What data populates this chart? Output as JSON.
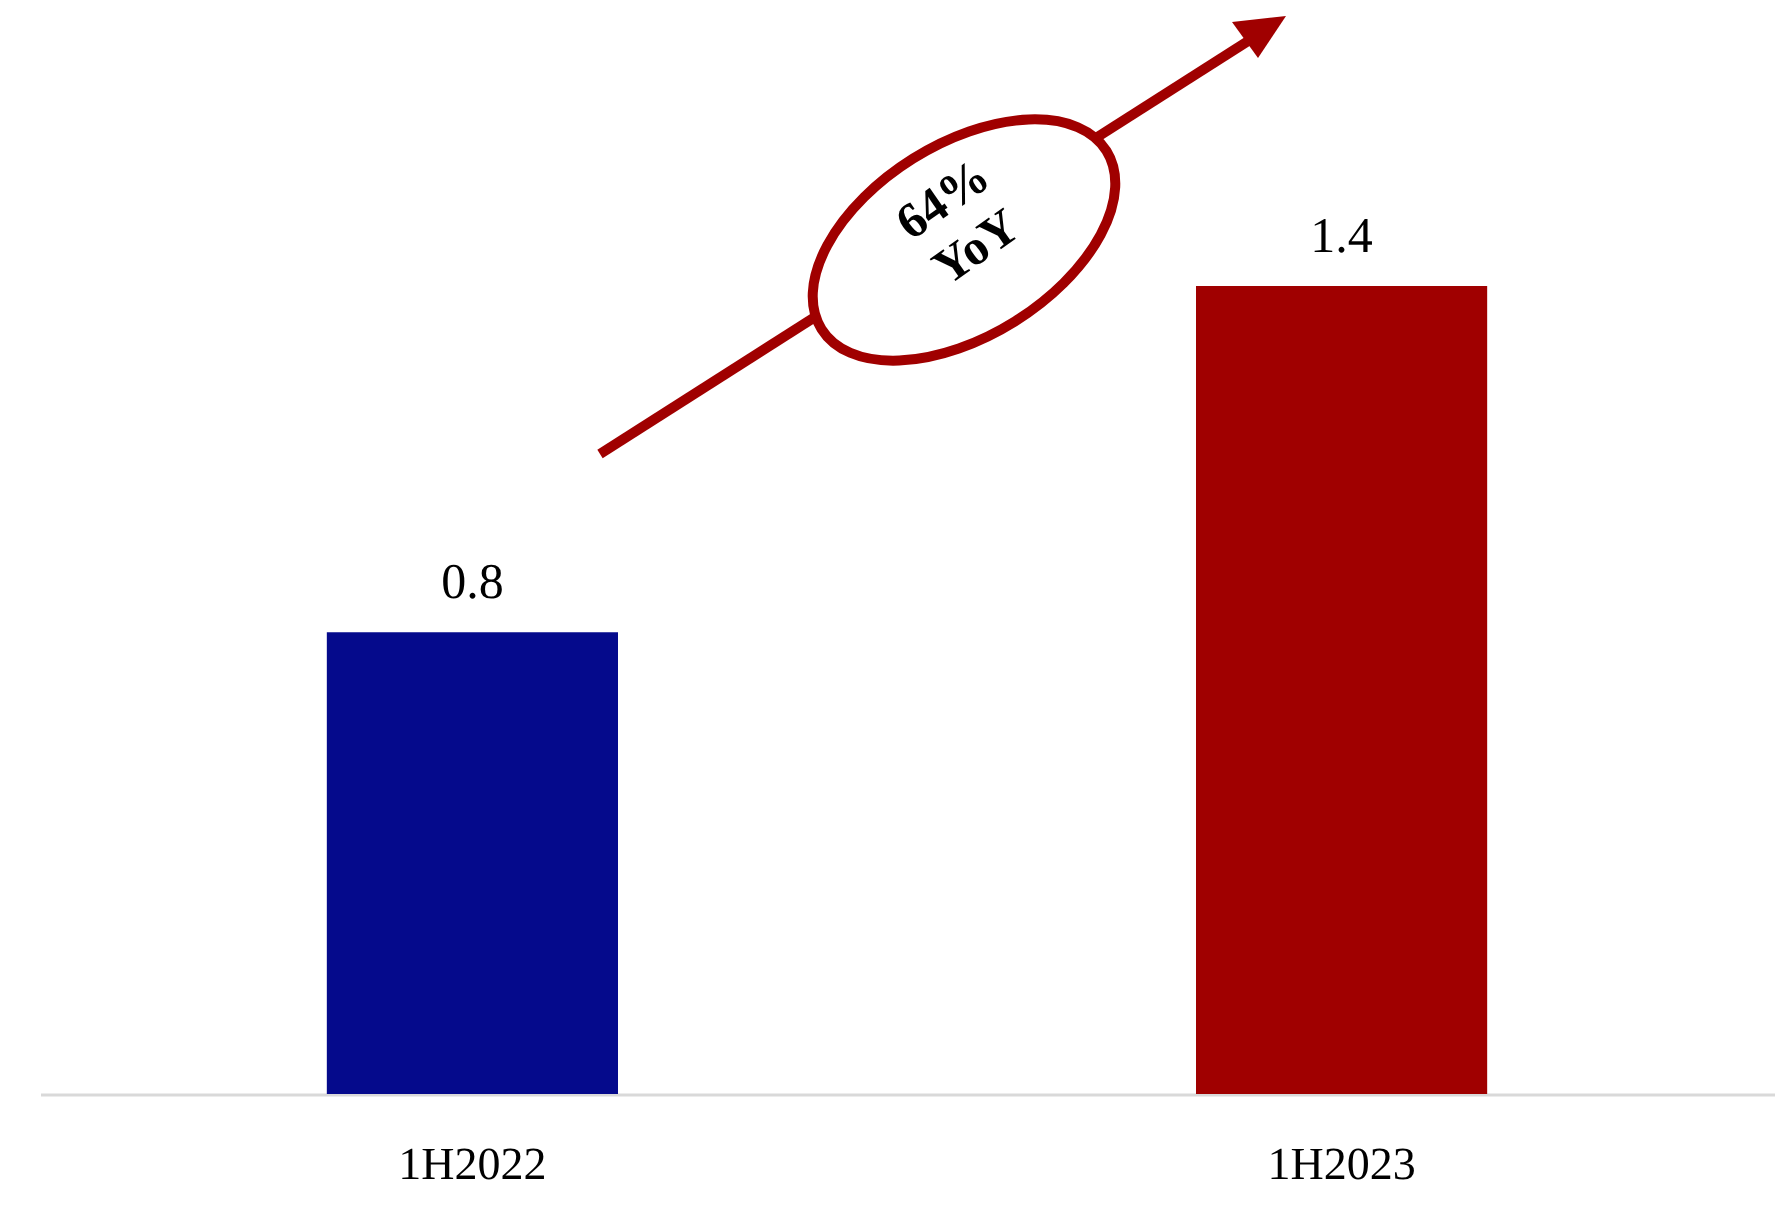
{
  "chart_data": {
    "type": "bar",
    "categories": [
      "1H2022",
      "1H2023"
    ],
    "values": [
      0.8,
      1.4
    ],
    "colors": [
      "#050a8c",
      "#a00000"
    ],
    "data_labels": true,
    "annotations": [
      "64% YoY"
    ]
  }
}
